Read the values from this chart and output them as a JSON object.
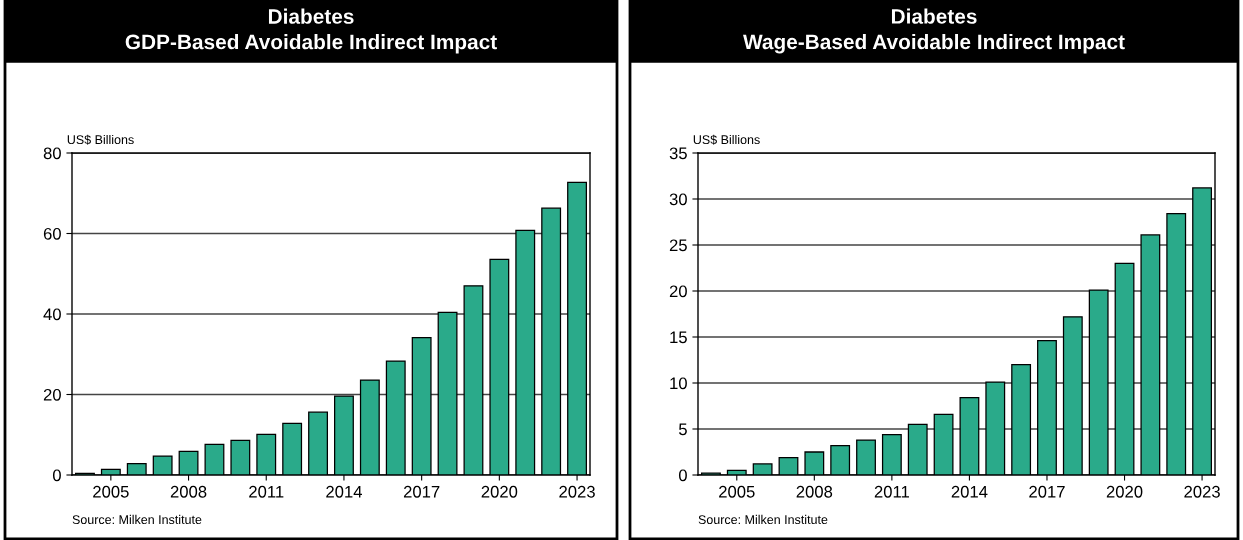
{
  "chart_data": [
    {
      "type": "bar",
      "title": "Diabetes\nGDP-Based Avoidable Indirect Impact",
      "ylabel": "US$ Billions",
      "categories": [
        null,
        "2005",
        null,
        null,
        "2008",
        null,
        null,
        "2011",
        null,
        null,
        "2014",
        null,
        null,
        "2017",
        null,
        null,
        "2020",
        null,
        null,
        "2023"
      ],
      "values": [
        0.4,
        1.4,
        2.8,
        4.7,
        5.9,
        7.6,
        8.6,
        10.1,
        12.8,
        15.6,
        19.6,
        23.6,
        28.3,
        34.1,
        40.4,
        47.0,
        53.6,
        60.8,
        66.3,
        72.7
      ],
      "color": "#2aaa8a",
      "ylim": [
        0,
        80
      ],
      "yticks": [
        0,
        20,
        40,
        60,
        80
      ],
      "grid": "y",
      "annotations": [
        "Source: Milken Institute"
      ]
    },
    {
      "type": "bar",
      "title": "Diabetes\nWage-Based Avoidable Indirect Impact",
      "ylabel": "US$ Billions",
      "categories": [
        null,
        "2005",
        null,
        null,
        "2008",
        null,
        null,
        "2011",
        null,
        null,
        "2014",
        null,
        null,
        "2017",
        null,
        null,
        "2020",
        null,
        null,
        "2023"
      ],
      "values": [
        0.2,
        0.5,
        1.2,
        1.9,
        2.5,
        3.2,
        3.8,
        4.4,
        5.5,
        6.6,
        8.4,
        10.1,
        12.0,
        14.6,
        17.2,
        20.1,
        23.0,
        26.1,
        28.4,
        31.2
      ],
      "color": "#2aaa8a",
      "ylim": [
        0,
        35
      ],
      "yticks": [
        0,
        5,
        10,
        15,
        20,
        25,
        30,
        35
      ],
      "grid": "y",
      "annotations": [
        "Source: Milken Institute"
      ]
    }
  ]
}
